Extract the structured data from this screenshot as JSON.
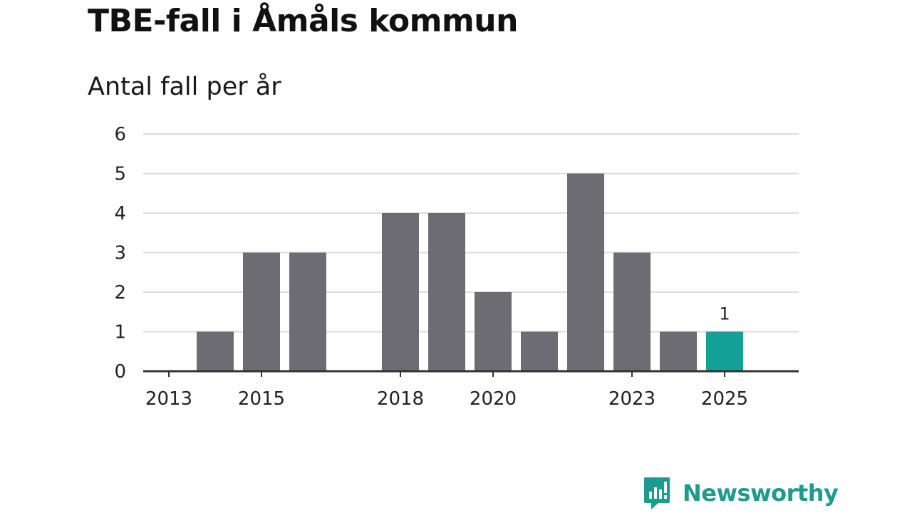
{
  "title": "TBE-fall i Åmåls kommun",
  "subtitle": "Antal fall per år",
  "brand": {
    "name": "Newsworthy",
    "color": "#1f9a8f"
  },
  "colors": {
    "bar": "#6d6c72",
    "highlight": "#13a197",
    "grid": "#dddddd",
    "axis": "#333333"
  },
  "chart_data": {
    "type": "bar",
    "title": "TBE-fall i Åmåls kommun",
    "subtitle": "Antal fall per år",
    "xlabel": "",
    "ylabel": "",
    "categories": [
      "2013",
      "2014",
      "2015",
      "2016",
      "2017",
      "2018",
      "2019",
      "2020",
      "2021",
      "2022",
      "2023",
      "2024",
      "2025"
    ],
    "values": [
      0,
      1,
      3,
      3,
      0,
      4,
      4,
      2,
      1,
      5,
      3,
      1,
      1
    ],
    "highlight": "2025",
    "x_tick_labels": [
      "2013",
      "2015",
      "2018",
      "2020",
      "2023",
      "2025"
    ],
    "y_ticks": [
      "0",
      "1",
      "2",
      "3",
      "4",
      "5",
      "6"
    ],
    "ylim": [
      0,
      6
    ],
    "data_labels": [
      {
        "category": "2025",
        "text": "1"
      }
    ],
    "grid": true
  }
}
